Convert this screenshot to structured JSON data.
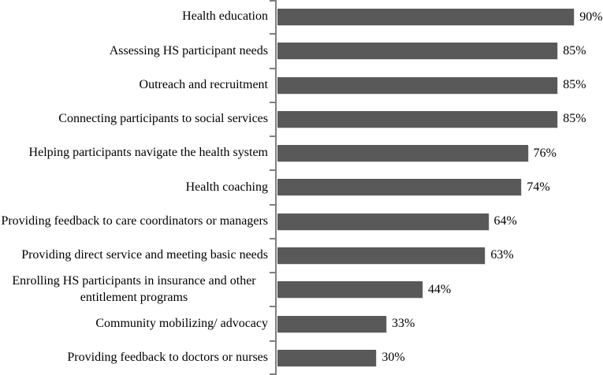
{
  "chart_data": {
    "type": "bar",
    "orientation": "horizontal",
    "categories": [
      "Health education",
      "Assessing HS participant needs",
      "Outreach and recruitment",
      "Connecting participants to social services",
      "Helping participants navigate the health system",
      "Health coaching",
      "Providing feedback to care coordinators or managers",
      "Providing direct service and meeting basic needs",
      "Enrolling HS participants in insurance and other entitlement programs",
      "Community mobilizing/ advocacy",
      "Providing feedback to doctors or nurses"
    ],
    "values": [
      90,
      85,
      85,
      85,
      76,
      74,
      64,
      63,
      44,
      33,
      30
    ],
    "value_labels": [
      "90%",
      "85%",
      "85%",
      "85%",
      "76%",
      "74%",
      "64%",
      "63%",
      "44%",
      "33%",
      "30%"
    ],
    "value_suffix": "%",
    "xlim": [
      0,
      100
    ],
    "grid": false,
    "legend": false,
    "bar_color": "#595959",
    "axis_color": "#7f7f7f",
    "text_color": "#000000"
  }
}
